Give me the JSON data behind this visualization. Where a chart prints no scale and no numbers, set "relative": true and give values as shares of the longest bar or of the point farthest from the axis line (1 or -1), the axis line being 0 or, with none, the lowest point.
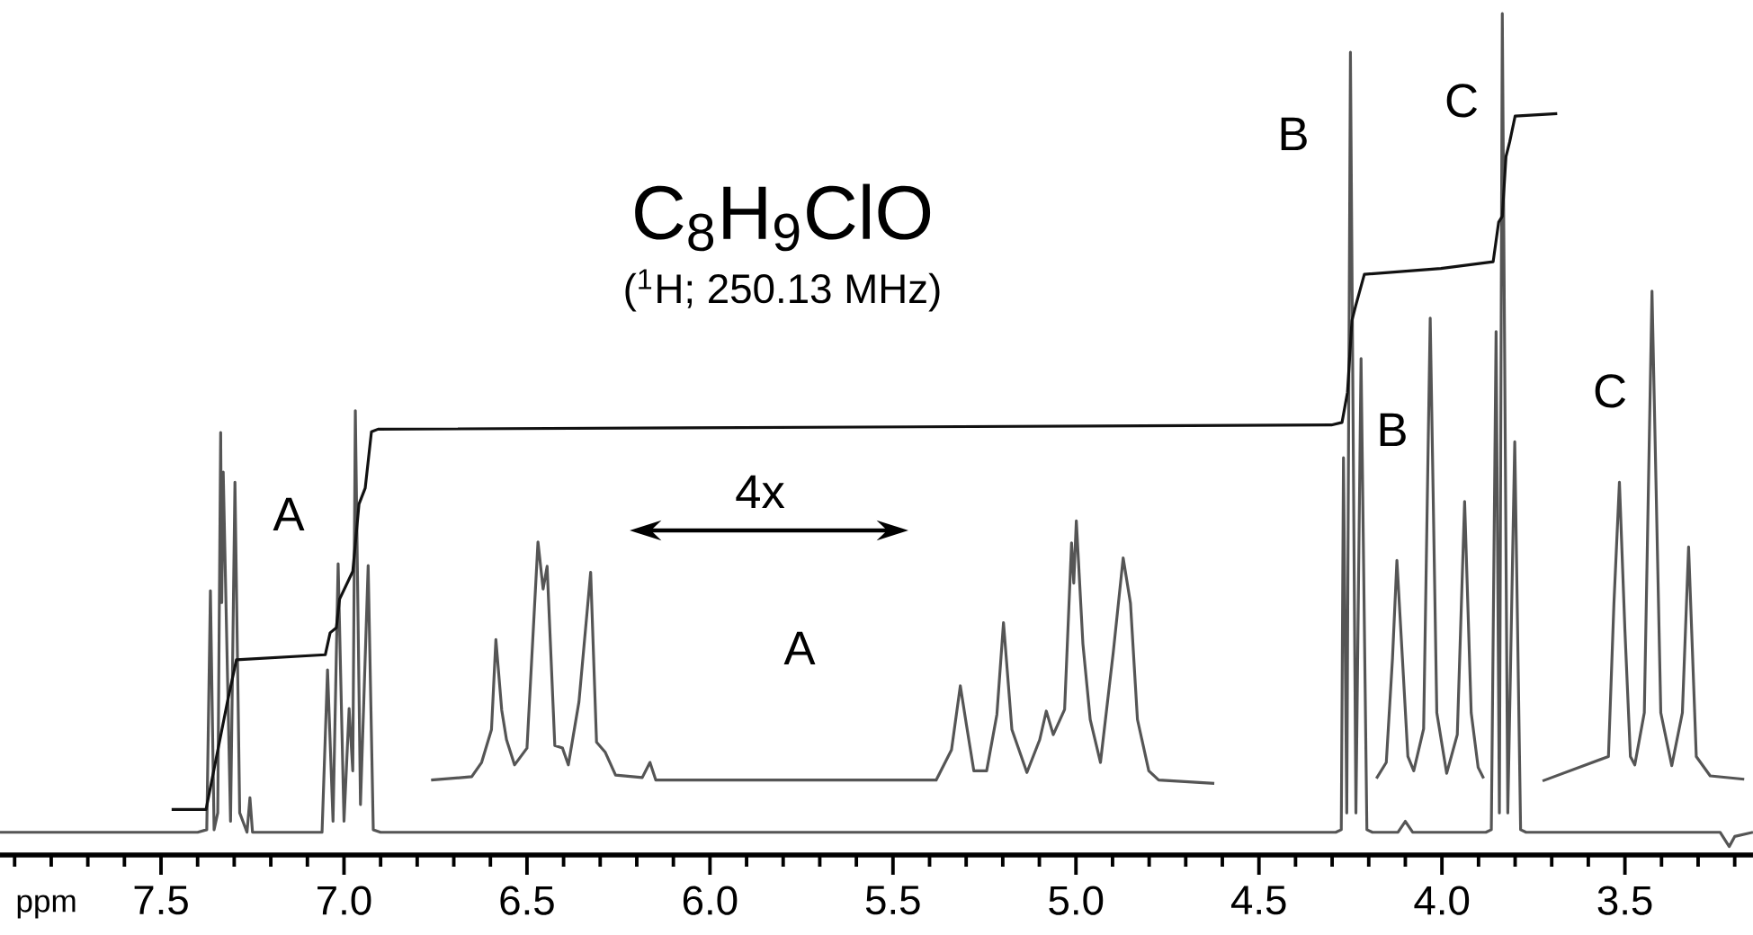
{
  "chart_data": {
    "type": "line",
    "relative": true,
    "title": "C$_{8}$H$_{9}$ClO",
    "subtitle": "($^{1}$H; 250.13 MHz)",
    "xlabel": "ppm",
    "xlim": [
      7.94,
      3.15
    ],
    "xticks": [
      {
        "value": 7.9,
        "label": null
      },
      {
        "value": 7.8,
        "label": null
      },
      {
        "value": 7.7,
        "label": null
      },
      {
        "value": 7.6,
        "label": null
      },
      {
        "value": 7.5,
        "label": "7.5"
      },
      {
        "value": 7.4,
        "label": null
      },
      {
        "value": 7.3,
        "label": null
      },
      {
        "value": 7.2,
        "label": null
      },
      {
        "value": 7.1,
        "label": null
      },
      {
        "value": 7,
        "label": "7.0"
      },
      {
        "value": 6.9,
        "label": null
      },
      {
        "value": 6.8,
        "label": null
      },
      {
        "value": 6.7,
        "label": null
      },
      {
        "value": 6.6,
        "label": null
      },
      {
        "value": 6.5,
        "label": "6.5"
      },
      {
        "value": 6.4,
        "label": null
      },
      {
        "value": 6.3,
        "label": null
      },
      {
        "value": 6.2,
        "label": null
      },
      {
        "value": 6.1,
        "label": null
      },
      {
        "value": 6,
        "label": "6.0"
      },
      {
        "value": 5.9,
        "label": null
      },
      {
        "value": 5.8,
        "label": null
      },
      {
        "value": 5.7,
        "label": null
      },
      {
        "value": 5.6,
        "label": null
      },
      {
        "value": 5.5,
        "label": "5.5"
      },
      {
        "value": 5.4,
        "label": null
      },
      {
        "value": 5.3,
        "label": null
      },
      {
        "value": 5.2,
        "label": null
      },
      {
        "value": 5.1,
        "label": null
      },
      {
        "value": 5,
        "label": "5.0"
      },
      {
        "value": 4.9,
        "label": null
      },
      {
        "value": 4.8,
        "label": null
      },
      {
        "value": 4.7,
        "label": null
      },
      {
        "value": 4.6,
        "label": null
      },
      {
        "value": 4.5,
        "label": "4.5"
      },
      {
        "value": 4.4,
        "label": null
      },
      {
        "value": 4.3,
        "label": null
      },
      {
        "value": 4.2,
        "label": null
      },
      {
        "value": 4.1,
        "label": null
      },
      {
        "value": 4,
        "label": "4.0"
      },
      {
        "value": 3.9,
        "label": null
      },
      {
        "value": 3.8,
        "label": null
      },
      {
        "value": 3.7,
        "label": null
      },
      {
        "value": 3.6,
        "label": null
      },
      {
        "value": 3.5,
        "label": "3.5"
      },
      {
        "value": 3.4,
        "label": null
      },
      {
        "value": 3.3,
        "label": null
      },
      {
        "value": 3.2,
        "label": null
      }
    ],
    "series": [
      {
        "color": "#555555",
        "x": [
          7.94,
          7.4,
          7.375,
          7.365,
          7.355,
          7.345,
          7.337,
          7.334,
          7.33,
          7.31,
          7.298,
          7.285,
          7.265,
          7.257,
          7.25,
          7.06,
          7.045,
          7.03,
          7.016,
          7.0,
          6.986,
          6.976,
          6.969,
          6.955,
          6.934,
          6.92,
          6.9,
          4.29,
          4.275,
          4.269,
          4.26,
          4.25,
          4.235,
          4.221,
          4.205,
          4.19,
          4.12,
          4.1,
          4.08,
          3.88,
          3.865,
          3.852,
          3.843,
          3.835,
          3.82,
          3.801,
          3.785,
          3.77,
          3.24,
          3.215,
          3.2,
          3.15
        ],
        "values": [
          0.027,
          0.027,
          0.03,
          0.314,
          0.03,
          0.05,
          0.502,
          0.3,
          0.455,
          0.04,
          0.443,
          0.05,
          0.027,
          0.068,
          0.027,
          0.027,
          0.22,
          0.04,
          0.346,
          0.04,
          0.174,
          0.1,
          0.528,
          0.06,
          0.344,
          0.03,
          0.027,
          0.027,
          0.03,
          0.472,
          0.05,
          0.954,
          0.05,
          0.59,
          0.03,
          0.027,
          0.027,
          0.04,
          0.027,
          0.027,
          0.03,
          0.622,
          0.05,
          1,
          0.05,
          0.491,
          0.03,
          0.027,
          0.027,
          0.01,
          0.022,
          0.027
        ]
      },
      {
        "color": "#111111",
        "x": [
          7.471,
          7.377,
          7.319,
          7.294,
          7.051,
          7.038,
          7.021,
          7.012,
          6.976,
          6.959,
          6.942,
          6.925,
          6.907,
          4.302,
          4.273,
          4.258,
          4.246,
          4.236,
          4.212,
          4.003,
          3.86,
          3.845,
          3.835,
          3.825,
          3.815,
          3.8,
          3.685
        ],
        "values": [
          0.054,
          0.054,
          0.181,
          0.232,
          0.238,
          0.264,
          0.27,
          0.304,
          0.337,
          0.417,
          0.436,
          0.503,
          0.506,
          0.511,
          0.514,
          0.55,
          0.635,
          0.652,
          0.69,
          0.697,
          0.705,
          0.752,
          0.759,
          0.83,
          0.847,
          0.878,
          0.881
        ]
      },
      {
        "color": "#555555",
        "x": [
          6.762,
          6.651,
          6.624,
          6.597,
          6.585,
          6.569,
          6.556,
          6.534,
          6.5,
          6.47,
          6.456,
          6.445,
          6.424,
          6.403,
          6.387,
          6.358,
          6.326,
          6.31,
          6.286,
          6.258,
          6.185,
          6.164,
          6.148,
          5.382,
          5.34,
          5.316,
          5.299,
          5.279,
          5.244,
          5.216,
          5.198,
          5.175,
          5.134,
          5.099,
          5.081,
          5.062,
          5.031,
          5.012,
          5.006,
          4.999,
          4.981,
          4.961,
          4.933,
          4.898,
          4.871,
          4.851,
          4.832,
          4.801,
          4.774,
          4.622
        ],
        "values": [
          0.089,
          0.093,
          0.11,
          0.149,
          0.256,
          0.172,
          0.137,
          0.107,
          0.127,
          0.372,
          0.316,
          0.343,
          0.13,
          0.127,
          0.107,
          0.182,
          0.336,
          0.134,
          0.122,
          0.095,
          0.092,
          0.11,
          0.089,
          0.089,
          0.125,
          0.201,
          0.154,
          0.1,
          0.1,
          0.167,
          0.276,
          0.149,
          0.098,
          0.137,
          0.171,
          0.143,
          0.173,
          0.371,
          0.323,
          0.397,
          0.251,
          0.161,
          0.11,
          0.241,
          0.353,
          0.299,
          0.161,
          0.1,
          0.089,
          0.085
        ]
      },
      {
        "color": "#555555",
        "x": [
          4.179,
          4.152,
          4.135,
          4.123,
          4.108,
          4.093,
          4.077,
          4.05,
          4.032,
          4.014,
          3.987,
          3.958,
          3.938,
          3.92,
          3.901,
          3.886
        ],
        "values": [
          0.091,
          0.11,
          0.234,
          0.35,
          0.234,
          0.117,
          0.1,
          0.15,
          0.638,
          0.169,
          0.097,
          0.143,
          0.42,
          0.169,
          0.104,
          0.091
        ]
      },
      {
        "color": "#555555",
        "x": [
          3.725,
          3.545,
          3.53,
          3.515,
          3.5,
          3.485,
          3.473,
          3.447,
          3.426,
          3.402,
          3.372,
          3.343,
          3.326,
          3.305,
          3.267,
          3.174
        ],
        "values": [
          0.088,
          0.117,
          0.299,
          0.443,
          0.267,
          0.117,
          0.107,
          0.169,
          0.67,
          0.169,
          0.106,
          0.169,
          0.366,
          0.117,
          0.094,
          0.09
        ]
      }
    ],
    "annotations": [
      "A",
      "4x",
      "A",
      "B",
      "B",
      "C",
      "C"
    ]
  }
}
